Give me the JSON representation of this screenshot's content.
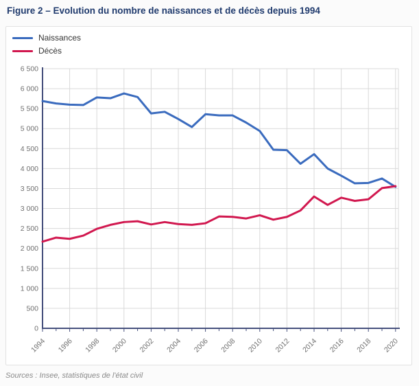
{
  "page": {
    "title": "Figure 2 – Evolution du nombre de naissances et de décès depuis 1994",
    "source": "Sources : Insee, statistiques de l'état civil"
  },
  "legend": {
    "items": [
      {
        "label": "Naissances",
        "color": "#3a6bbe"
      },
      {
        "label": "Décès",
        "color": "#d1184f"
      }
    ]
  },
  "theme": {
    "title_color": "#1f3a6d",
    "axis_color": "#454f7c",
    "grid_color": "#d9d9d9",
    "tick_text_color": "#6f6f6f",
    "panel_border_color": "#e2e2e2",
    "background": "#ffffff"
  },
  "chart_data": {
    "type": "line",
    "title": "Evolution du nombre de naissances et de décès depuis 1994",
    "xlabel": "",
    "ylabel": "",
    "x": [
      1994,
      1995,
      1996,
      1997,
      1998,
      1999,
      2000,
      2001,
      2002,
      2003,
      2004,
      2005,
      2006,
      2007,
      2008,
      2009,
      2010,
      2011,
      2012,
      2013,
      2014,
      2015,
      2016,
      2017,
      2018,
      2019,
      2020
    ],
    "series": [
      {
        "name": "Naissances",
        "color": "#3a6bbe",
        "values": [
          5690,
          5630,
          5600,
          5590,
          5780,
          5760,
          5880,
          5790,
          5380,
          5420,
          5240,
          5040,
          5360,
          5330,
          5330,
          5150,
          4940,
          4470,
          4460,
          4120,
          4360,
          4000,
          3820,
          3630,
          3640,
          3750,
          3540
        ]
      },
      {
        "name": "Décès",
        "color": "#d1184f",
        "values": [
          2170,
          2270,
          2240,
          2320,
          2490,
          2590,
          2660,
          2680,
          2600,
          2660,
          2610,
          2590,
          2630,
          2800,
          2790,
          2750,
          2830,
          2720,
          2790,
          2950,
          3300,
          3090,
          3270,
          3190,
          3230,
          3510,
          3560
        ]
      }
    ],
    "ylim": [
      0,
      6500
    ],
    "yticks": [
      {
        "value": 0,
        "label": "0"
      },
      {
        "value": 500,
        "label": "500"
      },
      {
        "value": 1000,
        "label": "1 000"
      },
      {
        "value": 1500,
        "label": "1 500"
      },
      {
        "value": 2000,
        "label": "2 000"
      },
      {
        "value": 2500,
        "label": "2 500"
      },
      {
        "value": 3000,
        "label": "3 000"
      },
      {
        "value": 3500,
        "label": "3 500"
      },
      {
        "value": 4000,
        "label": "4 000"
      },
      {
        "value": 4500,
        "label": "4 500"
      },
      {
        "value": 5000,
        "label": "5 000"
      },
      {
        "value": 5500,
        "label": "5 500"
      },
      {
        "value": 6000,
        "label": "6 000"
      },
      {
        "value": 6500,
        "label": "6 500"
      }
    ],
    "xticks": [
      1994,
      1996,
      1998,
      2000,
      2002,
      2004,
      2006,
      2008,
      2010,
      2012,
      2014,
      2016,
      2018,
      2020
    ],
    "grid": true,
    "legend_position": "top-left"
  }
}
